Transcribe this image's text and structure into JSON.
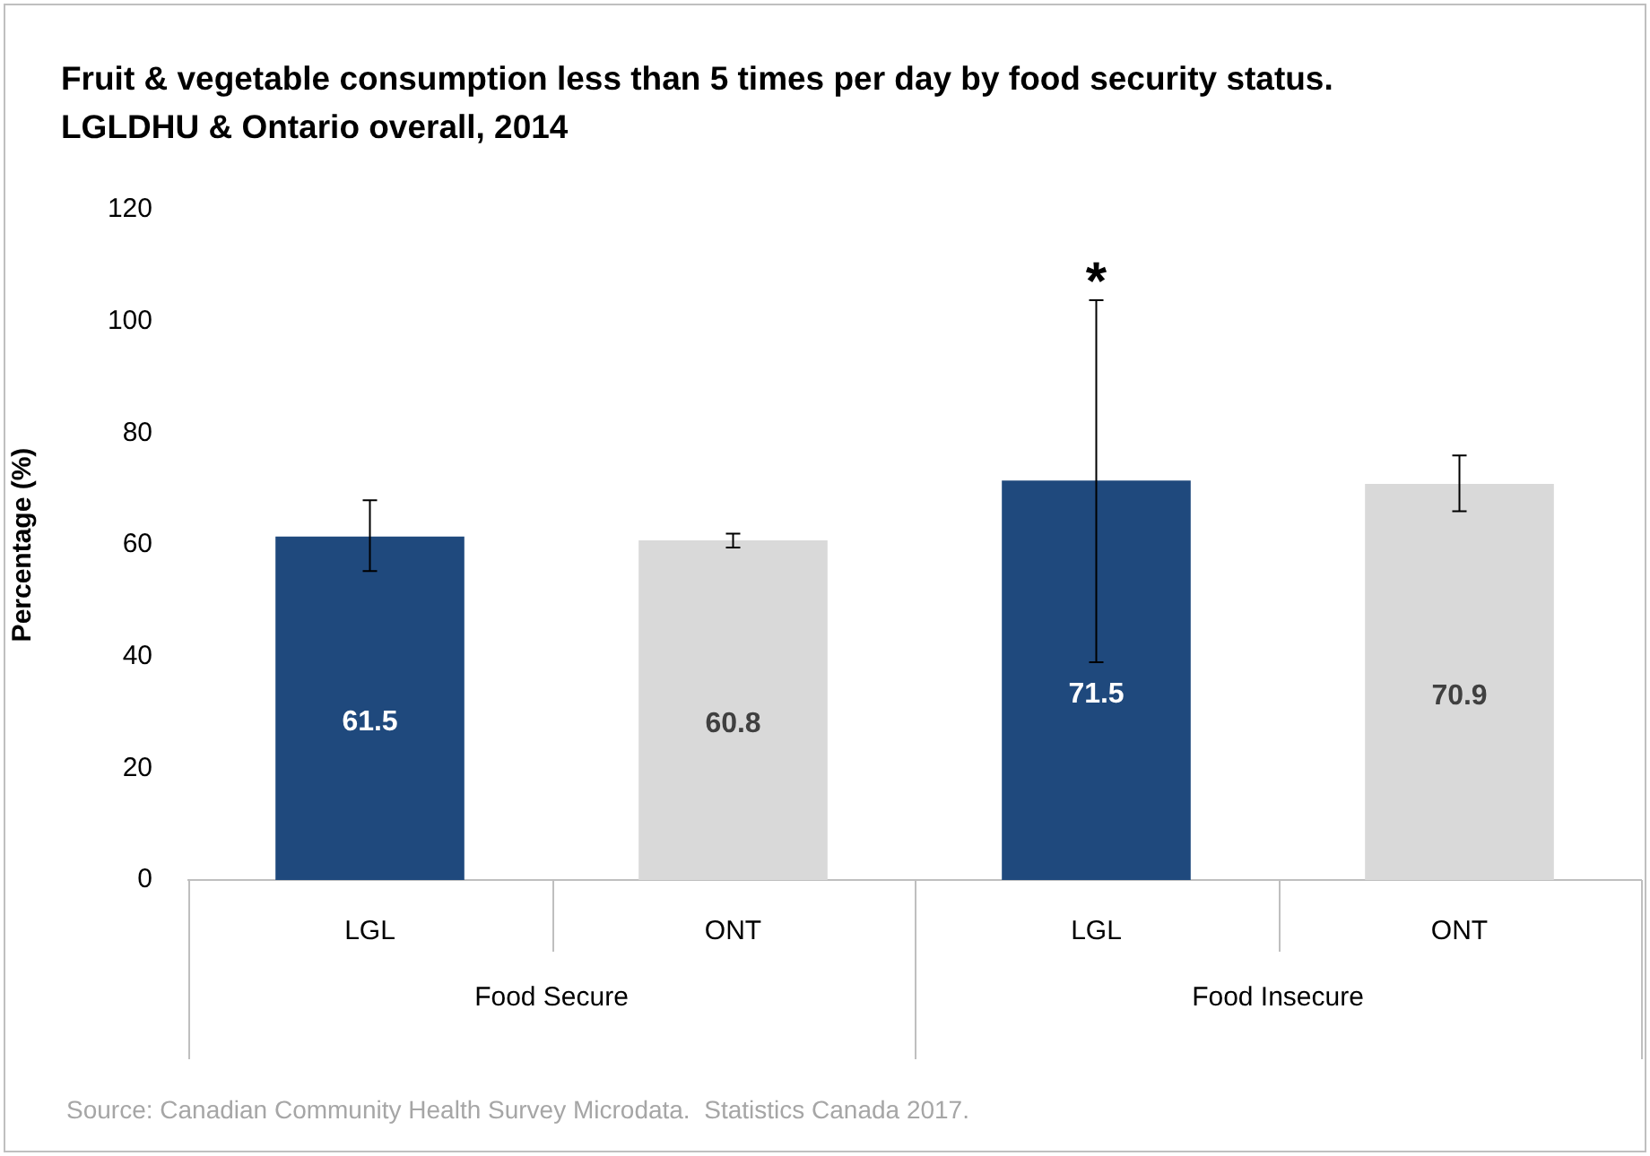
{
  "chart_data": {
    "type": "bar",
    "title": "Fruit & vegetable consumption less than 5 times per day by food security status. LGLDHU & Ontario overall, 2014",
    "ylabel": "Percentage (%)",
    "categories": [
      "LGL",
      "ONT",
      "LGL",
      "ONT"
    ],
    "values": [
      61.5,
      60.8,
      71.5,
      70.9
    ],
    "colors": [
      "#1f497d",
      "#d9d9d9",
      "#1f497d",
      "#d9d9d9"
    ],
    "errors": [
      [
        55.3,
        68
      ],
      [
        59.5,
        62
      ],
      [
        39,
        103.8
      ],
      [
        66,
        76
      ]
    ],
    "data_labels": true,
    "ylim": [
      0,
      120
    ],
    "yticks": [
      0,
      20,
      40,
      60,
      80,
      100,
      120
    ],
    "grid": false,
    "legend": false,
    "annotations": [
      "Food Secure",
      "Food Insecure",
      {
        "text": "*",
        "y": 103.8
      },
      "Source: Canadian Community Health Survey Microdata.  Statistics Canada 2017."
    ]
  }
}
